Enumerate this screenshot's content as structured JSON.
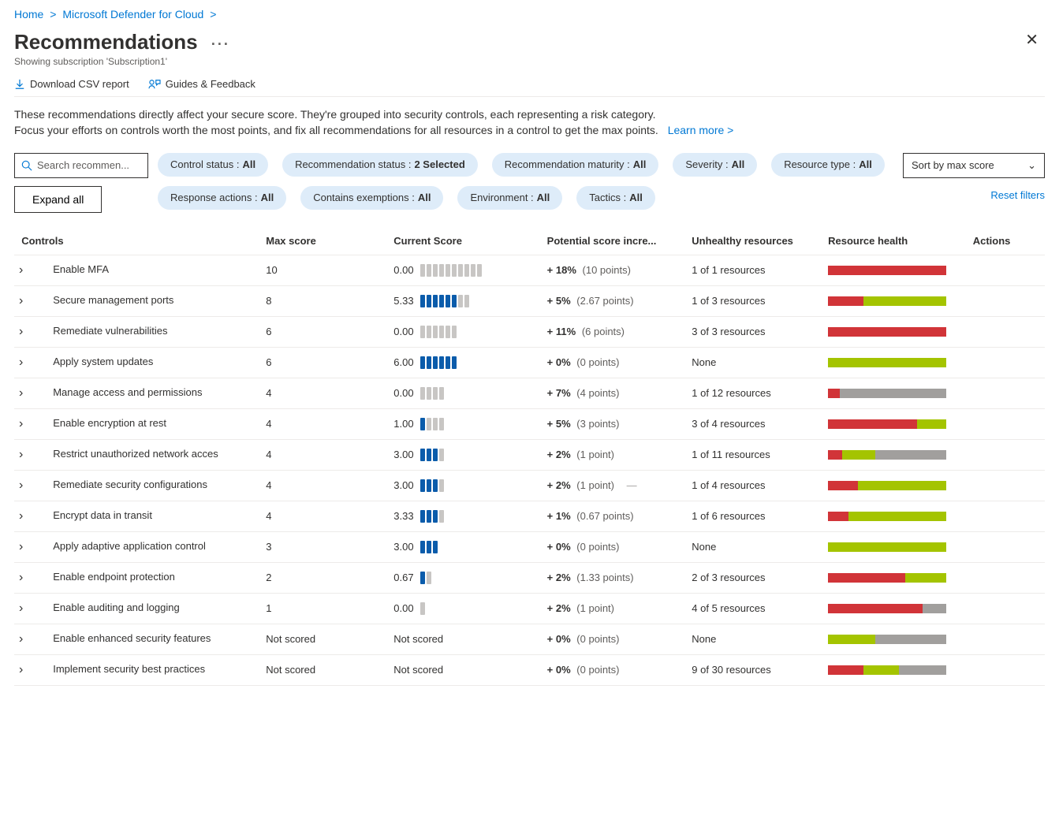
{
  "breadcrumb": {
    "home": "Home",
    "mdc": "Microsoft Defender for Cloud"
  },
  "page": {
    "title": "Recommendations",
    "subtitle": "Showing subscription 'Subscription1'"
  },
  "toolbar": {
    "download": "Download CSV report",
    "guides": "Guides & Feedback"
  },
  "intro": {
    "line1": "These recommendations directly affect your secure score. They're grouped into security controls, each representing a risk category.",
    "line2": "Focus your efforts on controls worth the most points, and fix all recommendations for all resources in a control to get the max points.",
    "learn": "Learn more >"
  },
  "search": {
    "placeholder": "Search recommen..."
  },
  "expand_all": "Expand all",
  "sort_label": "Sort by max score",
  "reset_label": "Reset filters",
  "filters": [
    {
      "label": "Control status :",
      "value": "All"
    },
    {
      "label": "Recommendation status :",
      "value": "2 Selected"
    },
    {
      "label": "Recommendation maturity :",
      "value": "All"
    },
    {
      "label": "Severity :",
      "value": "All"
    },
    {
      "label": "Resource type :",
      "value": "All"
    },
    {
      "label": "Response actions :",
      "value": "All"
    },
    {
      "label": "Contains exemptions :",
      "value": "All"
    },
    {
      "label": "Environment :",
      "value": "All"
    },
    {
      "label": "Tactics :",
      "value": "All"
    }
  ],
  "columns": {
    "controls": "Controls",
    "max": "Max score",
    "current": "Current Score",
    "potential": "Potential score incre...",
    "unhealthy": "Unhealthy resources",
    "health": "Resource health",
    "actions": "Actions"
  },
  "colors": {
    "tick_full": "#0b5cab",
    "tick_empty": "#c8c6c4",
    "health_red": "#d13438",
    "health_green": "#a4c400",
    "health_gray": "#a19f9d"
  },
  "rows": [
    {
      "name": "Enable MFA",
      "max": "10",
      "current": "0.00",
      "ticks_total": 10,
      "ticks_full": 0,
      "pct": "+ 18%",
      "pts": "(10 points)",
      "unhealthy": "1 of 1 resources",
      "health": [
        [
          "red",
          100
        ]
      ],
      "dash": false
    },
    {
      "name": "Secure management ports",
      "max": "8",
      "current": "5.33",
      "ticks_total": 8,
      "ticks_full": 6,
      "pct": "+ 5%",
      "pts": "(2.67 points)",
      "unhealthy": "1 of 3 resources",
      "health": [
        [
          "red",
          30
        ],
        [
          "green",
          70
        ]
      ],
      "dash": false
    },
    {
      "name": "Remediate vulnerabilities",
      "max": "6",
      "current": "0.00",
      "ticks_total": 6,
      "ticks_full": 0,
      "pct": "+ 11%",
      "pts": "(6 points)",
      "unhealthy": "3 of 3 resources",
      "health": [
        [
          "red",
          100
        ]
      ],
      "dash": false
    },
    {
      "name": "Apply system updates",
      "max": "6",
      "current": "6.00",
      "ticks_total": 6,
      "ticks_full": 6,
      "pct": "+ 0%",
      "pts": "(0 points)",
      "unhealthy": "None",
      "health": [
        [
          "green",
          100
        ]
      ],
      "dash": false
    },
    {
      "name": "Manage access and permissions",
      "max": "4",
      "current": "0.00",
      "ticks_total": 4,
      "ticks_full": 0,
      "pct": "+ 7%",
      "pts": "(4 points)",
      "unhealthy": "1 of 12 resources",
      "health": [
        [
          "red",
          10
        ],
        [
          "gray",
          90
        ]
      ],
      "dash": false
    },
    {
      "name": "Enable encryption at rest",
      "max": "4",
      "current": "1.00",
      "ticks_total": 4,
      "ticks_full": 1,
      "pct": "+ 5%",
      "pts": "(3 points)",
      "unhealthy": "3 of 4 resources",
      "health": [
        [
          "red",
          75
        ],
        [
          "green",
          25
        ]
      ],
      "dash": false
    },
    {
      "name": "Restrict unauthorized network acces",
      "max": "4",
      "current": "3.00",
      "ticks_total": 4,
      "ticks_full": 3,
      "pct": "+ 2%",
      "pts": "(1 point)",
      "unhealthy": "1 of 11 resources",
      "health": [
        [
          "red",
          12
        ],
        [
          "green",
          28
        ],
        [
          "gray",
          60
        ]
      ],
      "dash": false
    },
    {
      "name": "Remediate security configurations",
      "max": "4",
      "current": "3.00",
      "ticks_total": 4,
      "ticks_full": 3,
      "pct": "+ 2%",
      "pts": "(1 point)",
      "unhealthy": "1 of 4 resources",
      "health": [
        [
          "red",
          25
        ],
        [
          "green",
          75
        ]
      ],
      "dash": true
    },
    {
      "name": "Encrypt data in transit",
      "max": "4",
      "current": "3.33",
      "ticks_total": 4,
      "ticks_full": 3,
      "pct": "+ 1%",
      "pts": "(0.67 points)",
      "unhealthy": "1 of 6 resources",
      "health": [
        [
          "red",
          17
        ],
        [
          "green",
          83
        ]
      ],
      "dash": false
    },
    {
      "name": "Apply adaptive application control",
      "max": "3",
      "current": "3.00",
      "ticks_total": 3,
      "ticks_full": 3,
      "pct": "+ 0%",
      "pts": "(0 points)",
      "unhealthy": "None",
      "health": [
        [
          "green",
          100
        ]
      ],
      "dash": false
    },
    {
      "name": "Enable endpoint protection",
      "max": "2",
      "current": "0.67",
      "ticks_total": 2,
      "ticks_full": 1,
      "pct": "+ 2%",
      "pts": "(1.33 points)",
      "unhealthy": "2 of 3 resources",
      "health": [
        [
          "red",
          65
        ],
        [
          "green",
          35
        ]
      ],
      "dash": false
    },
    {
      "name": "Enable auditing and logging",
      "max": "1",
      "current": "0.00",
      "ticks_total": 1,
      "ticks_full": 0,
      "pct": "+ 2%",
      "pts": "(1 point)",
      "unhealthy": "4 of 5 resources",
      "health": [
        [
          "red",
          80
        ],
        [
          "gray",
          20
        ]
      ],
      "dash": false
    },
    {
      "name": "Enable enhanced security features",
      "max": "Not scored",
      "current": "Not scored",
      "ticks_total": 0,
      "ticks_full": 0,
      "pct": "+ 0%",
      "pts": "(0 points)",
      "unhealthy": "None",
      "health": [
        [
          "green",
          40
        ],
        [
          "gray",
          60
        ]
      ],
      "dash": false
    },
    {
      "name": "Implement security best practices",
      "max": "Not scored",
      "current": "Not scored",
      "ticks_total": 0,
      "ticks_full": 0,
      "pct": "+ 0%",
      "pts": "(0 points)",
      "unhealthy": "9 of 30 resources",
      "health": [
        [
          "red",
          30
        ],
        [
          "green",
          30
        ],
        [
          "gray",
          40
        ]
      ],
      "dash": false
    }
  ]
}
